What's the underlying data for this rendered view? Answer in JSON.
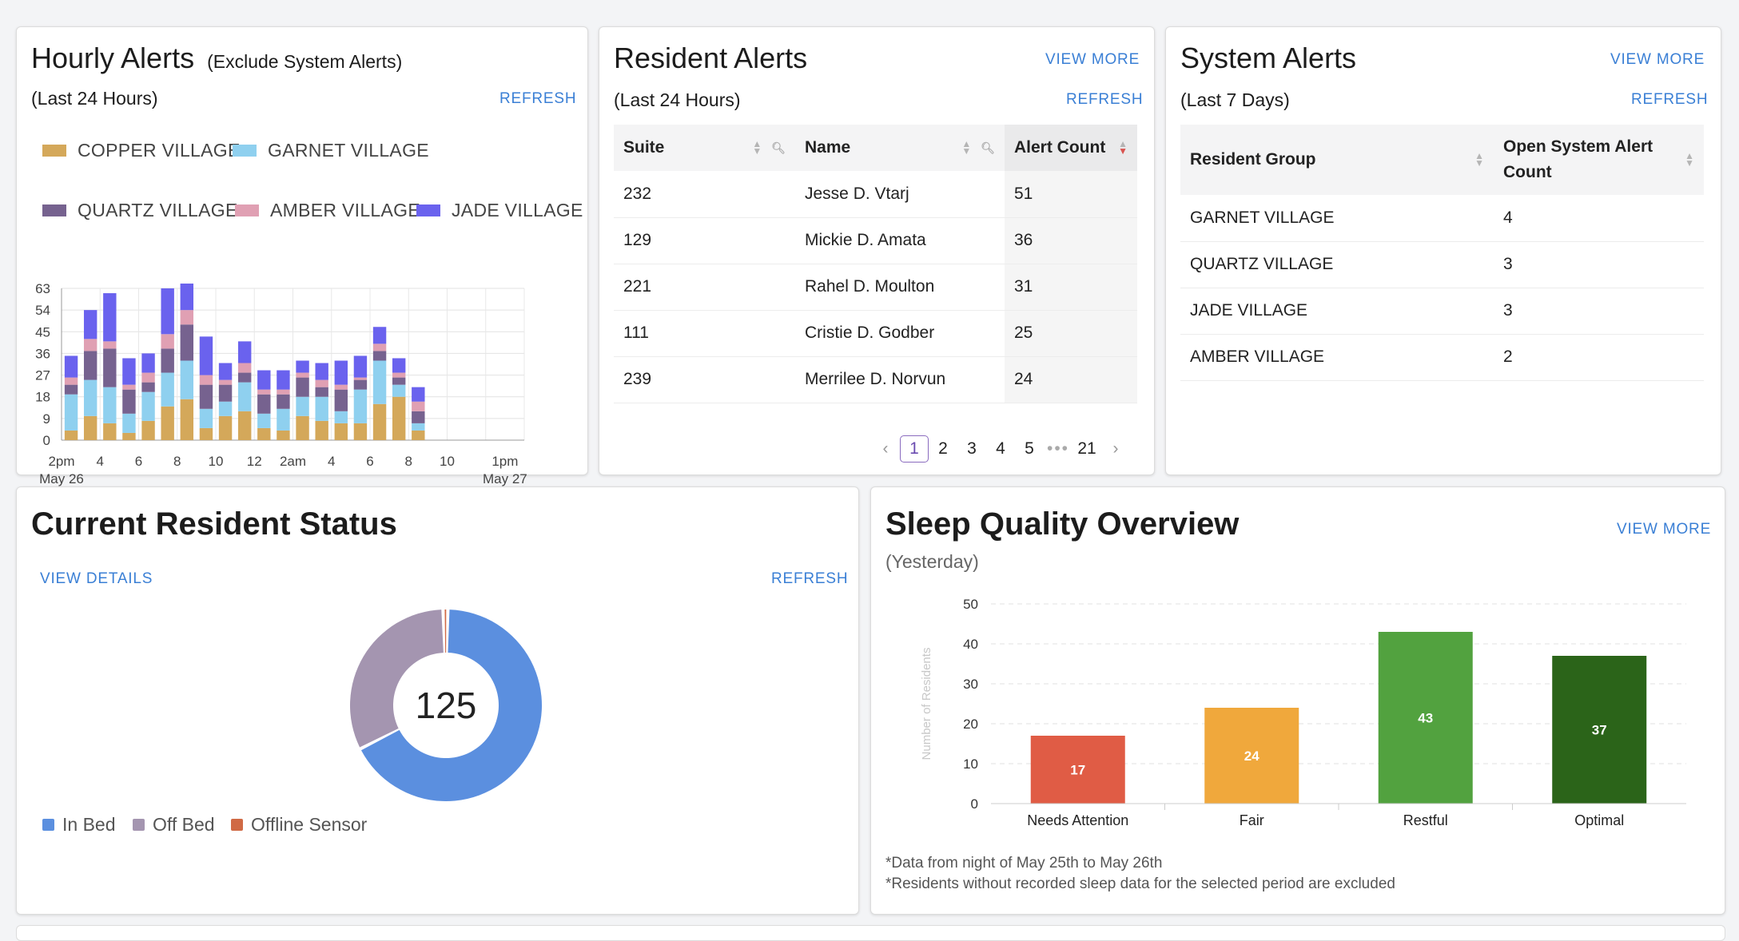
{
  "hourly": {
    "title": "Hourly Alerts",
    "title_note": "(Exclude System Alerts)",
    "period": "(Last 24 Hours)",
    "refresh_label": "REFRESH",
    "legend": [
      {
        "name": "COPPER VILLAGE",
        "color": "#d4a85a"
      },
      {
        "name": "GARNET VILLAGE",
        "color": "#8fd0ef"
      },
      {
        "name": "QUARTZ VILLAGE",
        "color": "#76628f"
      },
      {
        "name": "AMBER VILLAGE",
        "color": "#e0a0b3"
      },
      {
        "name": "JADE VILLAGE",
        "color": "#6a62ee"
      }
    ]
  },
  "chart_data": [
    {
      "type": "bar",
      "stacked": true,
      "x_ticks": [
        "2pm",
        "4",
        "6",
        "8",
        "10",
        "12",
        "2am",
        "4",
        "6",
        "8",
        "10",
        "1pm"
      ],
      "x_sub_ticks": {
        "2pm": "May 26",
        "1pm": "May 27"
      },
      "y_ticks": [
        0,
        9,
        18,
        27,
        36,
        45,
        54,
        63
      ],
      "ylim": [
        0,
        63
      ],
      "hours": 24,
      "series": [
        {
          "name": "COPPER VILLAGE",
          "values": [
            4,
            10,
            7,
            3,
            8,
            14,
            17,
            5,
            10,
            12,
            5,
            4,
            10,
            8,
            7,
            7,
            15,
            18,
            4,
            0,
            0,
            0,
            0,
            0
          ]
        },
        {
          "name": "GARNET VILLAGE",
          "values": [
            15,
            15,
            15,
            8,
            12,
            14,
            16,
            8,
            6,
            12,
            6,
            9,
            8,
            10,
            5,
            14,
            18,
            5,
            3,
            0,
            0,
            0,
            0,
            0
          ]
        },
        {
          "name": "QUARTZ VILLAGE",
          "values": [
            4,
            12,
            16,
            10,
            4,
            10,
            15,
            10,
            7,
            4,
            8,
            6,
            8,
            4,
            9,
            4,
            4,
            3,
            5,
            0,
            0,
            0,
            0,
            0
          ]
        },
        {
          "name": "AMBER VILLAGE",
          "values": [
            3,
            5,
            3,
            2,
            4,
            6,
            6,
            4,
            2,
            4,
            2,
            2,
            2,
            3,
            2,
            1,
            3,
            2,
            4,
            0,
            0,
            0,
            0,
            0
          ]
        },
        {
          "name": "JADE VILLAGE",
          "values": [
            9,
            12,
            20,
            11,
            8,
            19,
            11,
            16,
            7,
            9,
            8,
            8,
            5,
            7,
            10,
            9,
            7,
            6,
            6,
            0,
            0,
            0,
            0,
            0
          ]
        }
      ]
    },
    {
      "type": "pie",
      "center_value": "125",
      "slices": [
        {
          "name": "In Bed",
          "value": 84,
          "color": "#5b8fdf"
        },
        {
          "name": "Off Bed",
          "value": 40,
          "color": "#a495b0"
        },
        {
          "name": "Offline Sensor",
          "value": 1,
          "color": "#d06a45"
        }
      ]
    },
    {
      "type": "bar",
      "categories": [
        "Needs Attention",
        "Fair",
        "Restful",
        "Optimal"
      ],
      "values": [
        17,
        24,
        43,
        37
      ],
      "colors": [
        "#e05c45",
        "#f0a83c",
        "#52a23f",
        "#2b6419"
      ],
      "y_ticks": [
        0,
        10,
        20,
        30,
        40,
        50
      ],
      "ylim": [
        0,
        50
      ],
      "ylabel": "Number of Residents"
    }
  ],
  "resident": {
    "title": "Resident Alerts",
    "period": "(Last 24 Hours)",
    "view_more": "VIEW MORE",
    "refresh_label": "REFRESH",
    "columns": [
      "Suite",
      "Name",
      "Alert Count"
    ],
    "rows": [
      [
        "232",
        "Jesse D. Vtarj",
        "51"
      ],
      [
        "129",
        "Mickie D. Amata",
        "36"
      ],
      [
        "221",
        "Rahel D. Moulton",
        "31"
      ],
      [
        "111",
        "Cristie D. Godber",
        "25"
      ],
      [
        "239",
        "Merrilee D. Norvun",
        "24"
      ]
    ],
    "pages": [
      "1",
      "2",
      "3",
      "4",
      "5"
    ],
    "page_dots": "•••",
    "last_page": "21",
    "prev": "‹",
    "next": "›"
  },
  "system": {
    "title": "System Alerts",
    "period": "(Last 7 Days)",
    "view_more": "VIEW MORE",
    "refresh_label": "REFRESH",
    "columns": [
      "Resident Group",
      "Open System Alert Count"
    ],
    "rows": [
      [
        "GARNET VILLAGE",
        "4"
      ],
      [
        "QUARTZ VILLAGE",
        "3"
      ],
      [
        "JADE VILLAGE",
        "3"
      ],
      [
        "AMBER VILLAGE",
        "2"
      ]
    ]
  },
  "status": {
    "title": "Current Resident Status",
    "view_details": "VIEW DETAILS",
    "refresh_label": "REFRESH",
    "legend": [
      "In Bed",
      "Off Bed",
      "Offline Sensor"
    ]
  },
  "sleep": {
    "title": "Sleep Quality Overview",
    "period": "(Yesterday)",
    "view_more": "VIEW MORE",
    "note1": "*Data from night of May 25th to May 26th",
    "note2": "*Residents without recorded sleep data for the selected period are excluded"
  }
}
